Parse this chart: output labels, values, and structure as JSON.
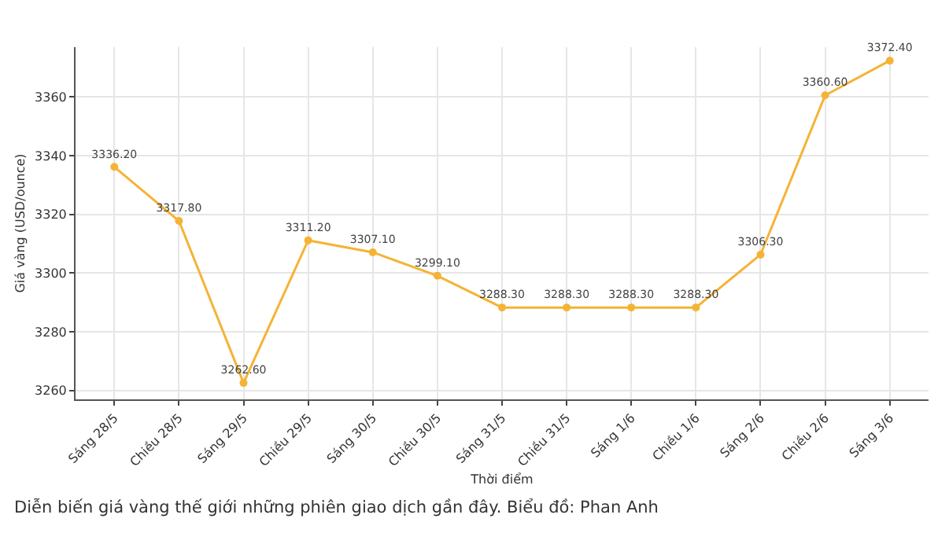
{
  "chart_data": {
    "type": "line",
    "xlabel": "Thời điểm",
    "ylabel": "Giá vàng (USD/ounce)",
    "categories": [
      "Sáng 28/5",
      "Chiều 28/5",
      "Sáng 29/5",
      "Chiều 29/5",
      "Sáng 30/5",
      "Chiều 30/5",
      "Sáng 31/5",
      "Chiều 31/5",
      "Sáng 1/6",
      "Chiều 1/6",
      "Sáng 2/6",
      "Chiều 2/6",
      "Sáng 3/6"
    ],
    "series": [
      {
        "color": "#f5b335",
        "values": [
          3336.2,
          3317.8,
          3262.6,
          3311.2,
          3307.1,
          3299.1,
          3288.3,
          3288.3,
          3288.3,
          3288.3,
          3306.3,
          3360.6,
          3372.4
        ],
        "value_labels": [
          "3336.20",
          "3317.80",
          "3262.60",
          "3311.20",
          "3307.10",
          "3299.10",
          "3288.30",
          "3288.30",
          "3288.30",
          "3288.30",
          "3306.30",
          "3360.60",
          "3372.40"
        ]
      }
    ],
    "ylim": [
      3257,
      3377
    ],
    "yticks": [
      3260,
      3280,
      3300,
      3320,
      3340,
      3360
    ],
    "grid": true,
    "marker": "circle",
    "line_style": "solid",
    "legend": false,
    "annotations": [
      "Diễn biến giá vàng thế giới những phiên giao dịch gần đây. Biểu đồ: Phan Anh"
    ]
  }
}
